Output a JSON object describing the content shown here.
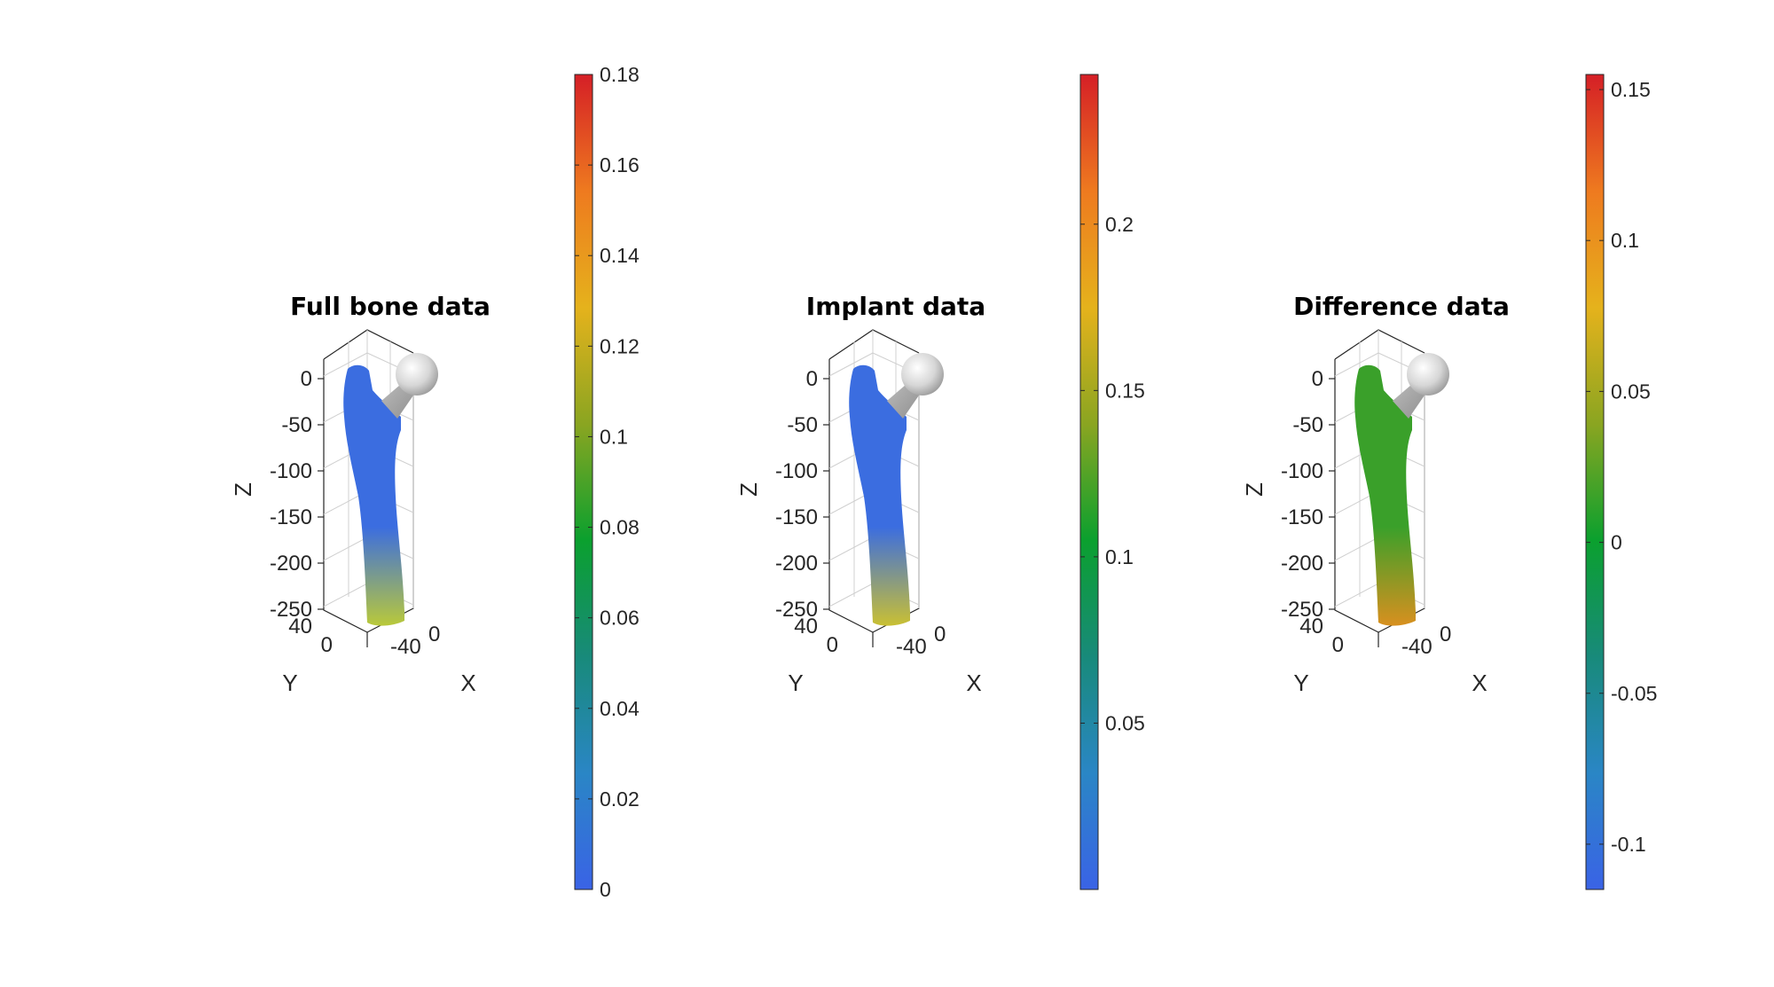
{
  "chart_data": [
    {
      "type": "3d-surface",
      "title": "Full bone data",
      "axes": {
        "xlabel": "X",
        "ylabel": "Y",
        "zlabel": "Z",
        "zticks": [
          "0",
          "-50",
          "-100",
          "-150",
          "-200",
          "-250"
        ],
        "yticks": [
          "40",
          "0"
        ],
        "xticks": [
          "-40",
          "0"
        ]
      },
      "colorbar": {
        "range": [
          0,
          0.18
        ],
        "ticks": [
          0,
          0.02,
          0.04,
          0.06,
          0.08,
          0.1,
          0.12,
          0.14,
          0.16,
          0.18
        ],
        "tick_labels": [
          "0",
          "0.02",
          "0.04",
          "0.06",
          "0.08",
          "0.1",
          "0.12",
          "0.14",
          "0.16",
          "0.18"
        ]
      },
      "surface_colors": {
        "body": "#3b6de0",
        "lower_shaft": "#b9c93a",
        "head": "#e6e6e6"
      }
    },
    {
      "type": "3d-surface",
      "title": "Implant data",
      "axes": {
        "xlabel": "X",
        "ylabel": "Y",
        "zlabel": "Z",
        "zticks": [
          "0",
          "-50",
          "-100",
          "-150",
          "-200",
          "-250"
        ],
        "yticks": [
          "40",
          "0"
        ],
        "xticks": [
          "-40",
          "0"
        ]
      },
      "colorbar": {
        "range": [
          0,
          0.245
        ],
        "ticks": [
          0.05,
          0.1,
          0.15,
          0.2
        ],
        "tick_labels": [
          "0.05",
          "0.1",
          "0.15",
          "0.2"
        ]
      },
      "surface_colors": {
        "body": "#3b6de0",
        "lower_shaft": "#c9c033",
        "head": "#e6e6e6"
      }
    },
    {
      "type": "3d-surface",
      "title": "Difference data",
      "axes": {
        "xlabel": "X",
        "ylabel": "Y",
        "zlabel": "Z",
        "zticks": [
          "0",
          "-50",
          "-100",
          "-150",
          "-200",
          "-250"
        ],
        "yticks": [
          "40",
          "0"
        ],
        "xticks": [
          "-40",
          "0"
        ]
      },
      "colorbar": {
        "range": [
          -0.115,
          0.155
        ],
        "ticks": [
          -0.1,
          -0.05,
          0,
          0.05,
          0.1,
          0.15
        ],
        "tick_labels": [
          "-0.1",
          "-0.05",
          "0",
          "0.05",
          "0.1",
          "0.15"
        ]
      },
      "surface_colors": {
        "body": "#3aa02a",
        "lower_shaft": "#d8901f",
        "head": "#e6e6e6"
      }
    }
  ],
  "colormap": [
    "#3a63e6",
    "#2a86c5",
    "#188a7a",
    "#0ba02e",
    "#8aa521",
    "#e5b21c",
    "#ee7a1f",
    "#d51f26"
  ]
}
